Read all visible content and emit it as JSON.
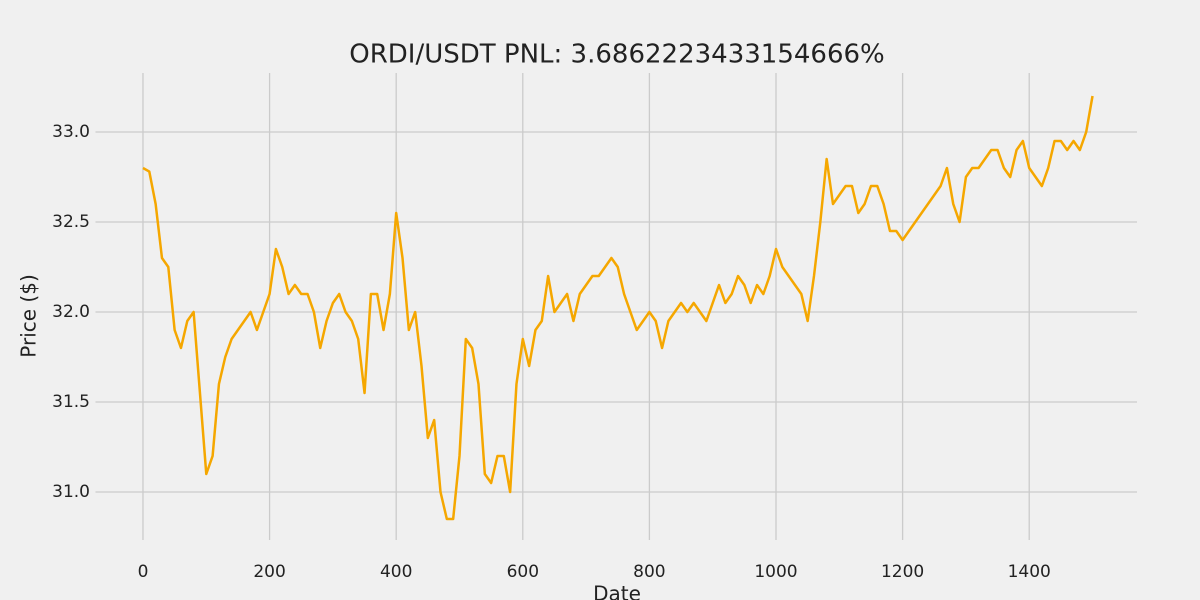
{
  "chart_data": {
    "type": "line",
    "title": "ORDI/USDT  PNL: 3.6862223433154666%",
    "xlabel": "Date",
    "ylabel": "Price ($)",
    "x": [
      0,
      10,
      20,
      30,
      40,
      50,
      60,
      70,
      80,
      90,
      100,
      110,
      120,
      130,
      140,
      150,
      160,
      170,
      180,
      190,
      200,
      210,
      220,
      230,
      240,
      250,
      260,
      270,
      280,
      290,
      300,
      310,
      320,
      330,
      340,
      350,
      360,
      370,
      380,
      390,
      400,
      410,
      420,
      430,
      440,
      450,
      460,
      470,
      480,
      490,
      500,
      510,
      520,
      530,
      540,
      550,
      560,
      570,
      580,
      590,
      600,
      610,
      620,
      630,
      640,
      650,
      660,
      670,
      680,
      690,
      700,
      710,
      720,
      730,
      740,
      750,
      760,
      770,
      780,
      790,
      800,
      810,
      820,
      830,
      840,
      850,
      860,
      870,
      880,
      890,
      900,
      910,
      920,
      930,
      940,
      950,
      960,
      970,
      980,
      990,
      1000,
      1010,
      1020,
      1030,
      1040,
      1050,
      1060,
      1070,
      1080,
      1090,
      1100,
      1110,
      1120,
      1130,
      1140,
      1150,
      1160,
      1170,
      1180,
      1190,
      1200,
      1210,
      1220,
      1230,
      1240,
      1250,
      1260,
      1270,
      1280,
      1290,
      1300,
      1310,
      1320,
      1330,
      1340,
      1350,
      1360,
      1370,
      1380,
      1390,
      1400,
      1410,
      1420,
      1430,
      1440,
      1450,
      1460,
      1470,
      1480,
      1490,
      1500
    ],
    "series": [
      {
        "color": "#f5a700",
        "values": [
          32.8,
          32.78,
          32.6,
          32.3,
          32.25,
          31.9,
          31.8,
          31.95,
          32.0,
          31.55,
          31.1,
          31.2,
          31.6,
          31.75,
          31.85,
          31.9,
          31.95,
          32.0,
          31.9,
          32.0,
          32.1,
          32.35,
          32.25,
          32.1,
          32.15,
          32.1,
          32.1,
          32.0,
          31.8,
          31.95,
          32.05,
          32.1,
          32.0,
          31.95,
          31.85,
          31.55,
          32.1,
          32.1,
          31.9,
          32.1,
          32.55,
          32.3,
          31.9,
          32.0,
          31.7,
          31.3,
          31.4,
          31.0,
          30.85,
          30.85,
          31.2,
          31.85,
          31.8,
          31.6,
          31.1,
          31.05,
          31.2,
          31.2,
          31.0,
          31.6,
          31.85,
          31.7,
          31.9,
          31.95,
          32.2,
          32.0,
          32.05,
          32.1,
          31.95,
          32.1,
          32.15,
          32.2,
          32.2,
          32.25,
          32.3,
          32.25,
          32.1,
          32.0,
          31.9,
          31.95,
          32.0,
          31.95,
          31.8,
          31.95,
          32.0,
          32.05,
          32.0,
          32.05,
          32.0,
          31.95,
          32.05,
          32.15,
          32.05,
          32.1,
          32.2,
          32.15,
          32.05,
          32.15,
          32.1,
          32.2,
          32.35,
          32.25,
          32.2,
          32.15,
          32.1,
          31.95,
          32.2,
          32.5,
          32.85,
          32.6,
          32.65,
          32.7,
          32.7,
          32.55,
          32.6,
          32.7,
          32.7,
          32.6,
          32.45,
          32.45,
          32.4,
          32.45,
          32.5,
          32.55,
          32.6,
          32.65,
          32.7,
          32.8,
          32.6,
          32.5,
          32.75,
          32.8,
          32.8,
          32.85,
          32.9,
          32.9,
          32.8,
          32.75,
          32.9,
          32.95,
          32.8,
          32.75,
          32.7,
          32.8,
          32.95,
          32.95,
          32.9,
          32.95,
          32.9,
          33.0,
          33.2
        ]
      }
    ],
    "xlim": [
      -75,
      1575
    ],
    "ylim": [
      30.63,
      33.32
    ],
    "xticks": [
      0,
      200,
      400,
      600,
      800,
      1000,
      1200,
      1400
    ],
    "yticks": [
      {
        "value": 31,
        "label": "31.0"
      },
      31.5,
      {
        "value": 32,
        "label": "32.0"
      },
      32.5,
      {
        "value": 33,
        "label": "33.0"
      }
    ],
    "grid": true
  }
}
